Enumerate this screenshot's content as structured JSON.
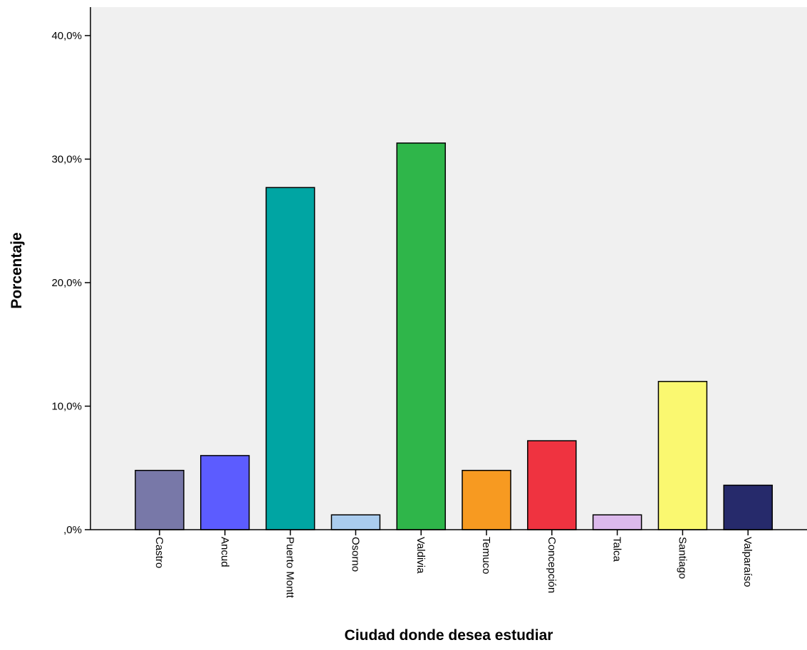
{
  "chart_data": {
    "type": "bar",
    "title": "",
    "xlabel": "Ciudad donde desea estudiar",
    "ylabel": "Porcentaje",
    "categories": [
      "Castro",
      "Ancud",
      "Puerto Montt",
      "Osorno",
      "Valdivia",
      "Temuco",
      "Concepción",
      "Talca",
      "Santiago",
      "Valparaíso"
    ],
    "values": [
      4.8,
      6.0,
      27.7,
      1.2,
      31.3,
      4.8,
      7.2,
      1.2,
      12.0,
      3.6
    ],
    "colors": [
      "#7878a8",
      "#5c5cff",
      "#00a5a3",
      "#aaccee",
      "#2fb64a",
      "#f79a21",
      "#ef3340",
      "#dcb9ec",
      "#faf870",
      "#262a6b"
    ],
    "ylim": [
      0,
      40
    ],
    "yticks": [
      0,
      10,
      20,
      30,
      40
    ],
    "ytick_labels": [
      ",0%",
      "10,0%",
      "20,0%",
      "30,0%",
      "40,0%"
    ],
    "plot_background": "#f0f0f0",
    "grid": false,
    "legend": "none"
  }
}
